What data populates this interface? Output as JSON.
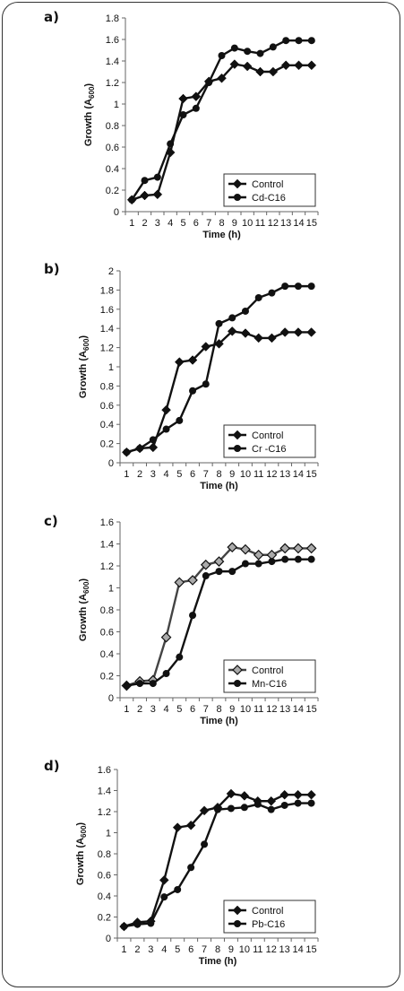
{
  "chart_data": [
    {
      "panel": "a)",
      "type": "line",
      "x": [
        1,
        2,
        3,
        4,
        5,
        6,
        7,
        8,
        9,
        10,
        11,
        12,
        13,
        14,
        15
      ],
      "xlabel": "Time (h)",
      "ylabel_main": "Growth (A",
      "ylabel_sub": "600",
      "ylabel_end": ")",
      "ylim": [
        0,
        1.8
      ],
      "yticks": [
        0,
        0.2,
        0.4,
        0.6,
        0.8,
        1,
        1.2,
        1.4,
        1.6,
        1.8
      ],
      "legend_position": "bottom-right",
      "series": [
        {
          "name": "Control",
          "marker": "diamond",
          "values": [
            0.11,
            0.15,
            0.16,
            0.55,
            1.05,
            1.07,
            1.21,
            1.24,
            1.37,
            1.35,
            1.3,
            1.3,
            1.36,
            1.36,
            1.36
          ]
        },
        {
          "name": "Cd-C16",
          "marker": "circle",
          "values": [
            0.11,
            0.29,
            0.32,
            0.63,
            0.9,
            0.96,
            1.2,
            1.45,
            1.52,
            1.49,
            1.47,
            1.53,
            1.59,
            1.59,
            1.59
          ]
        }
      ]
    },
    {
      "panel": "b)",
      "type": "line",
      "x": [
        1,
        2,
        3,
        4,
        5,
        6,
        7,
        8,
        9,
        10,
        11,
        12,
        13,
        14,
        15
      ],
      "xlabel": "Time (h)",
      "ylabel_main": "Growth (A",
      "ylabel_sub": "600",
      "ylabel_end": ")",
      "ylim": [
        0,
        2
      ],
      "yticks": [
        0,
        0.2,
        0.4,
        0.6,
        0.8,
        1,
        1.2,
        1.4,
        1.6,
        1.8,
        2
      ],
      "legend_position": "bottom-right",
      "series": [
        {
          "name": "Control",
          "marker": "diamond",
          "values": [
            0.11,
            0.15,
            0.16,
            0.55,
            1.05,
            1.07,
            1.21,
            1.24,
            1.37,
            1.35,
            1.3,
            1.3,
            1.36,
            1.36,
            1.36
          ]
        },
        {
          "name": "Cr -C16",
          "marker": "circle",
          "values": [
            0.11,
            0.15,
            0.24,
            0.35,
            0.44,
            0.75,
            0.82,
            1.45,
            1.51,
            1.58,
            1.72,
            1.77,
            1.84,
            1.84,
            1.84
          ]
        }
      ]
    },
    {
      "panel": "c)",
      "type": "line",
      "x": [
        1,
        2,
        3,
        4,
        5,
        6,
        7,
        8,
        9,
        10,
        11,
        12,
        13,
        14,
        15
      ],
      "xlabel": "Time (h)",
      "ylabel_main": "Growth (A",
      "ylabel_sub": "600",
      "ylabel_end": ")",
      "ylim": [
        0,
        1.6
      ],
      "yticks": [
        0,
        0.2,
        0.4,
        0.6,
        0.8,
        1,
        1.2,
        1.4,
        1.6
      ],
      "legend_position": "bottom-right",
      "series": [
        {
          "name": "Control",
          "marker": "diamond-gray",
          "values": [
            0.11,
            0.15,
            0.16,
            0.55,
            1.05,
            1.07,
            1.21,
            1.24,
            1.37,
            1.35,
            1.3,
            1.3,
            1.36,
            1.36,
            1.36
          ]
        },
        {
          "name": "Mn-C16",
          "marker": "circle",
          "values": [
            0.11,
            0.13,
            0.13,
            0.22,
            0.37,
            0.75,
            1.11,
            1.15,
            1.15,
            1.22,
            1.22,
            1.24,
            1.26,
            1.26,
            1.26
          ]
        }
      ]
    },
    {
      "panel": "d)",
      "type": "line",
      "x": [
        1,
        2,
        3,
        4,
        5,
        6,
        7,
        8,
        9,
        10,
        11,
        12,
        13,
        14,
        15
      ],
      "xlabel": "Time (h)",
      "ylabel_main": "Growth (A",
      "ylabel_sub": "600",
      "ylabel_end": ")",
      "ylim": [
        0,
        1.6
      ],
      "yticks": [
        0,
        0.2,
        0.4,
        0.6,
        0.8,
        1,
        1.2,
        1.4,
        1.6
      ],
      "legend_position": "bottom-right",
      "series": [
        {
          "name": "Control",
          "marker": "diamond",
          "values": [
            0.11,
            0.15,
            0.16,
            0.55,
            1.05,
            1.07,
            1.21,
            1.24,
            1.37,
            1.35,
            1.3,
            1.3,
            1.36,
            1.36,
            1.36
          ]
        },
        {
          "name": "Pb-C16",
          "marker": "circle",
          "values": [
            0.11,
            0.13,
            0.14,
            0.39,
            0.46,
            0.67,
            0.89,
            1.22,
            1.23,
            1.24,
            1.27,
            1.22,
            1.26,
            1.28,
            1.28
          ]
        }
      ]
    }
  ]
}
